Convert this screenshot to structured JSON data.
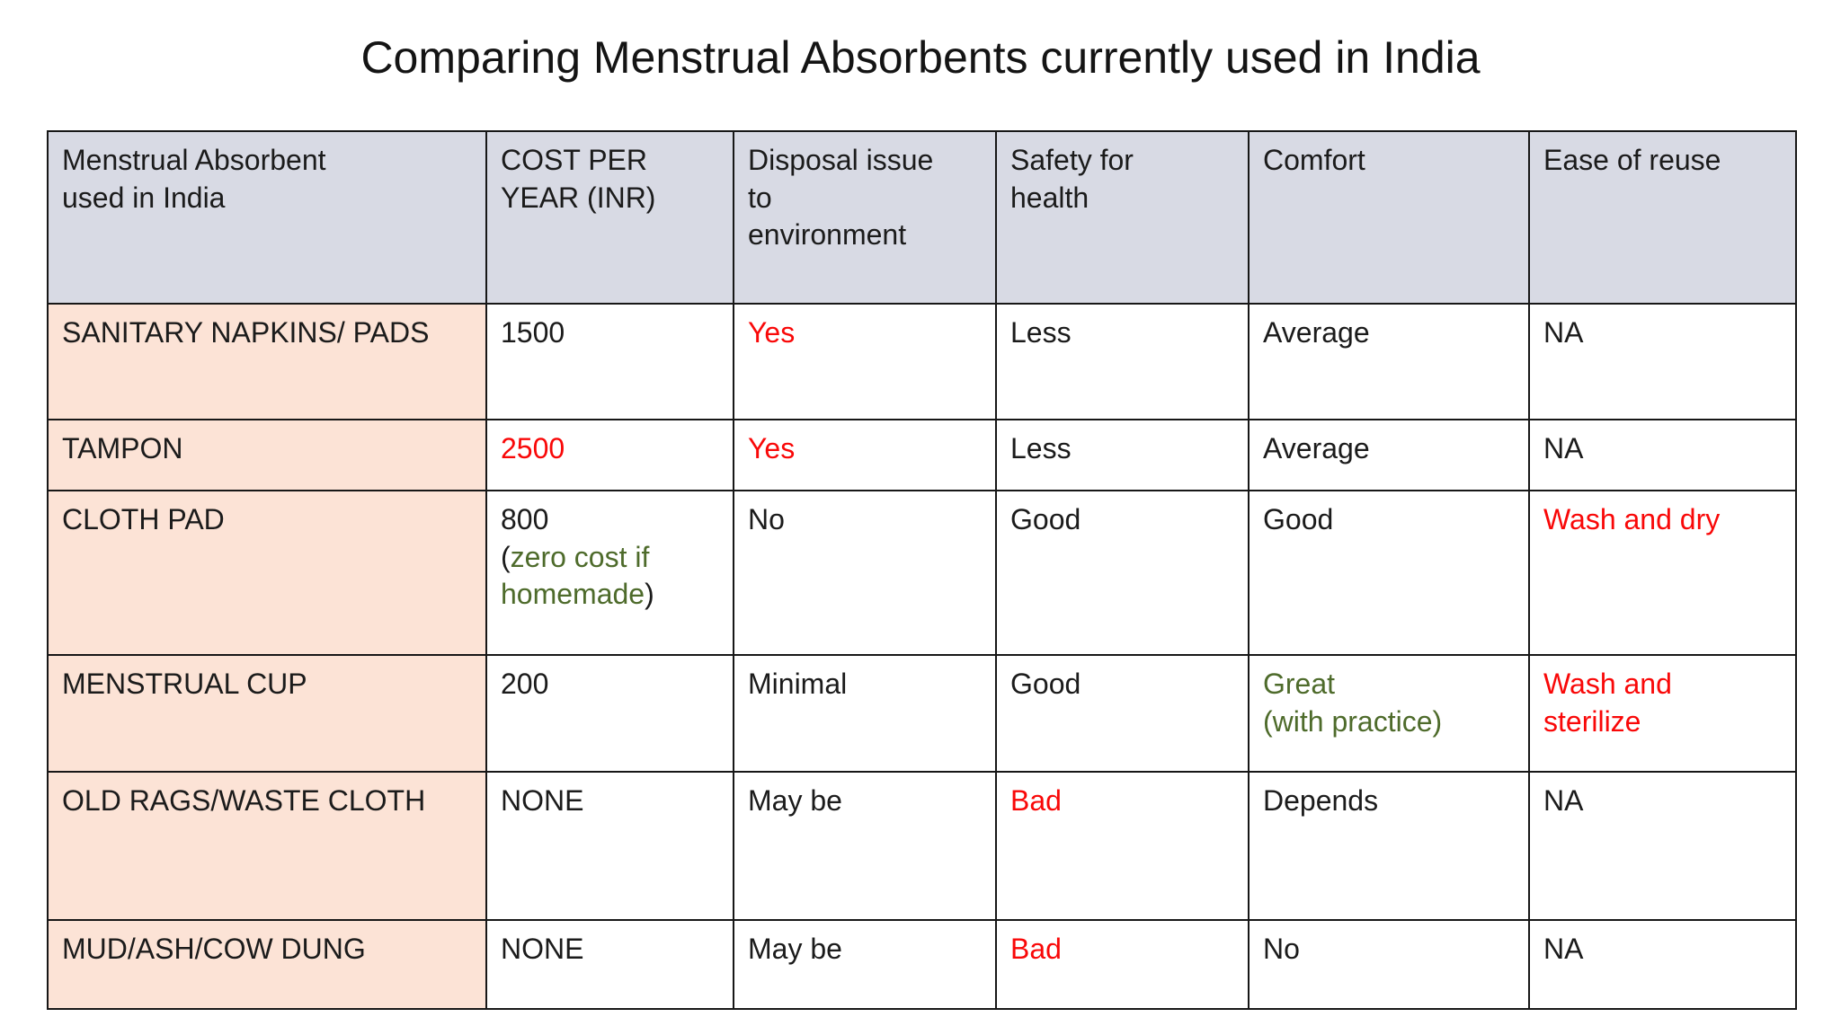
{
  "title": "Comparing Menstrual Absorbents currently used in India",
  "colors": {
    "default": "#1b1b1b",
    "red": "#f90808",
    "green": "#4e6b2b",
    "header_bg": "#d8dae4",
    "row_header_bg": "#fce3d6",
    "border": "#171717",
    "background": "#ffffff"
  },
  "table": {
    "headers": [
      "Menstrual Absorbent\nused in India",
      "COST PER\nYEAR (INR)",
      "Disposal issue\nto\nenvironment",
      "Safety for\nhealth",
      "Comfort",
      "Ease of reuse"
    ],
    "rows": [
      {
        "cells": [
          [
            {
              "text": "SANITARY NAPKINS/ PADS",
              "color": "default"
            }
          ],
          [
            {
              "text": "1500",
              "color": "default"
            }
          ],
          [
            {
              "text": "Yes",
              "color": "red"
            }
          ],
          [
            {
              "text": "Less",
              "color": "default"
            }
          ],
          [
            {
              "text": "Average",
              "color": "default"
            }
          ],
          [
            {
              "text": "NA",
              "color": "default"
            }
          ]
        ]
      },
      {
        "cells": [
          [
            {
              "text": "TAMPON",
              "color": "default"
            }
          ],
          [
            {
              "text": "2500",
              "color": "red"
            }
          ],
          [
            {
              "text": "Yes",
              "color": "red"
            }
          ],
          [
            {
              "text": "Less",
              "color": "default"
            }
          ],
          [
            {
              "text": "Average",
              "color": "default"
            }
          ],
          [
            {
              "text": "NA",
              "color": "default"
            }
          ]
        ]
      },
      {
        "cells": [
          [
            {
              "text": "CLOTH PAD",
              "color": "default"
            }
          ],
          [
            {
              "text": "800\n(",
              "color": "default"
            },
            {
              "text": "zero cost if\nhomemade",
              "color": "green"
            },
            {
              "text": ")",
              "color": "default"
            }
          ],
          [
            {
              "text": "No",
              "color": "default"
            }
          ],
          [
            {
              "text": "Good",
              "color": "default"
            }
          ],
          [
            {
              "text": "Good",
              "color": "default"
            }
          ],
          [
            {
              "text": "Wash and dry",
              "color": "red"
            }
          ]
        ]
      },
      {
        "cells": [
          [
            {
              "text": "MENSTRUAL CUP",
              "color": "default"
            }
          ],
          [
            {
              "text": "200",
              "color": "default"
            }
          ],
          [
            {
              "text": "Minimal",
              "color": "default"
            }
          ],
          [
            {
              "text": "Good",
              "color": "default"
            }
          ],
          [
            {
              "text": "Great\n(with practice)",
              "color": "green"
            }
          ],
          [
            {
              "text": "Wash and\nsterilize",
              "color": "red"
            }
          ]
        ]
      },
      {
        "cells": [
          [
            {
              "text": "OLD RAGS/WASTE CLOTH",
              "color": "default"
            }
          ],
          [
            {
              "text": "NONE",
              "color": "default"
            }
          ],
          [
            {
              "text": "May be",
              "color": "default"
            }
          ],
          [
            {
              "text": "Bad",
              "color": "red"
            }
          ],
          [
            {
              "text": "Depends",
              "color": "default"
            }
          ],
          [
            {
              "text": "NA",
              "color": "default"
            }
          ]
        ]
      },
      {
        "cells": [
          [
            {
              "text": "MUD/ASH/COW DUNG",
              "color": "default"
            }
          ],
          [
            {
              "text": "NONE",
              "color": "default"
            }
          ],
          [
            {
              "text": "May be",
              "color": "default"
            }
          ],
          [
            {
              "text": "Bad",
              "color": "red"
            }
          ],
          [
            {
              "text": "No",
              "color": "default"
            }
          ],
          [
            {
              "text": "NA",
              "color": "default"
            }
          ]
        ]
      }
    ]
  }
}
